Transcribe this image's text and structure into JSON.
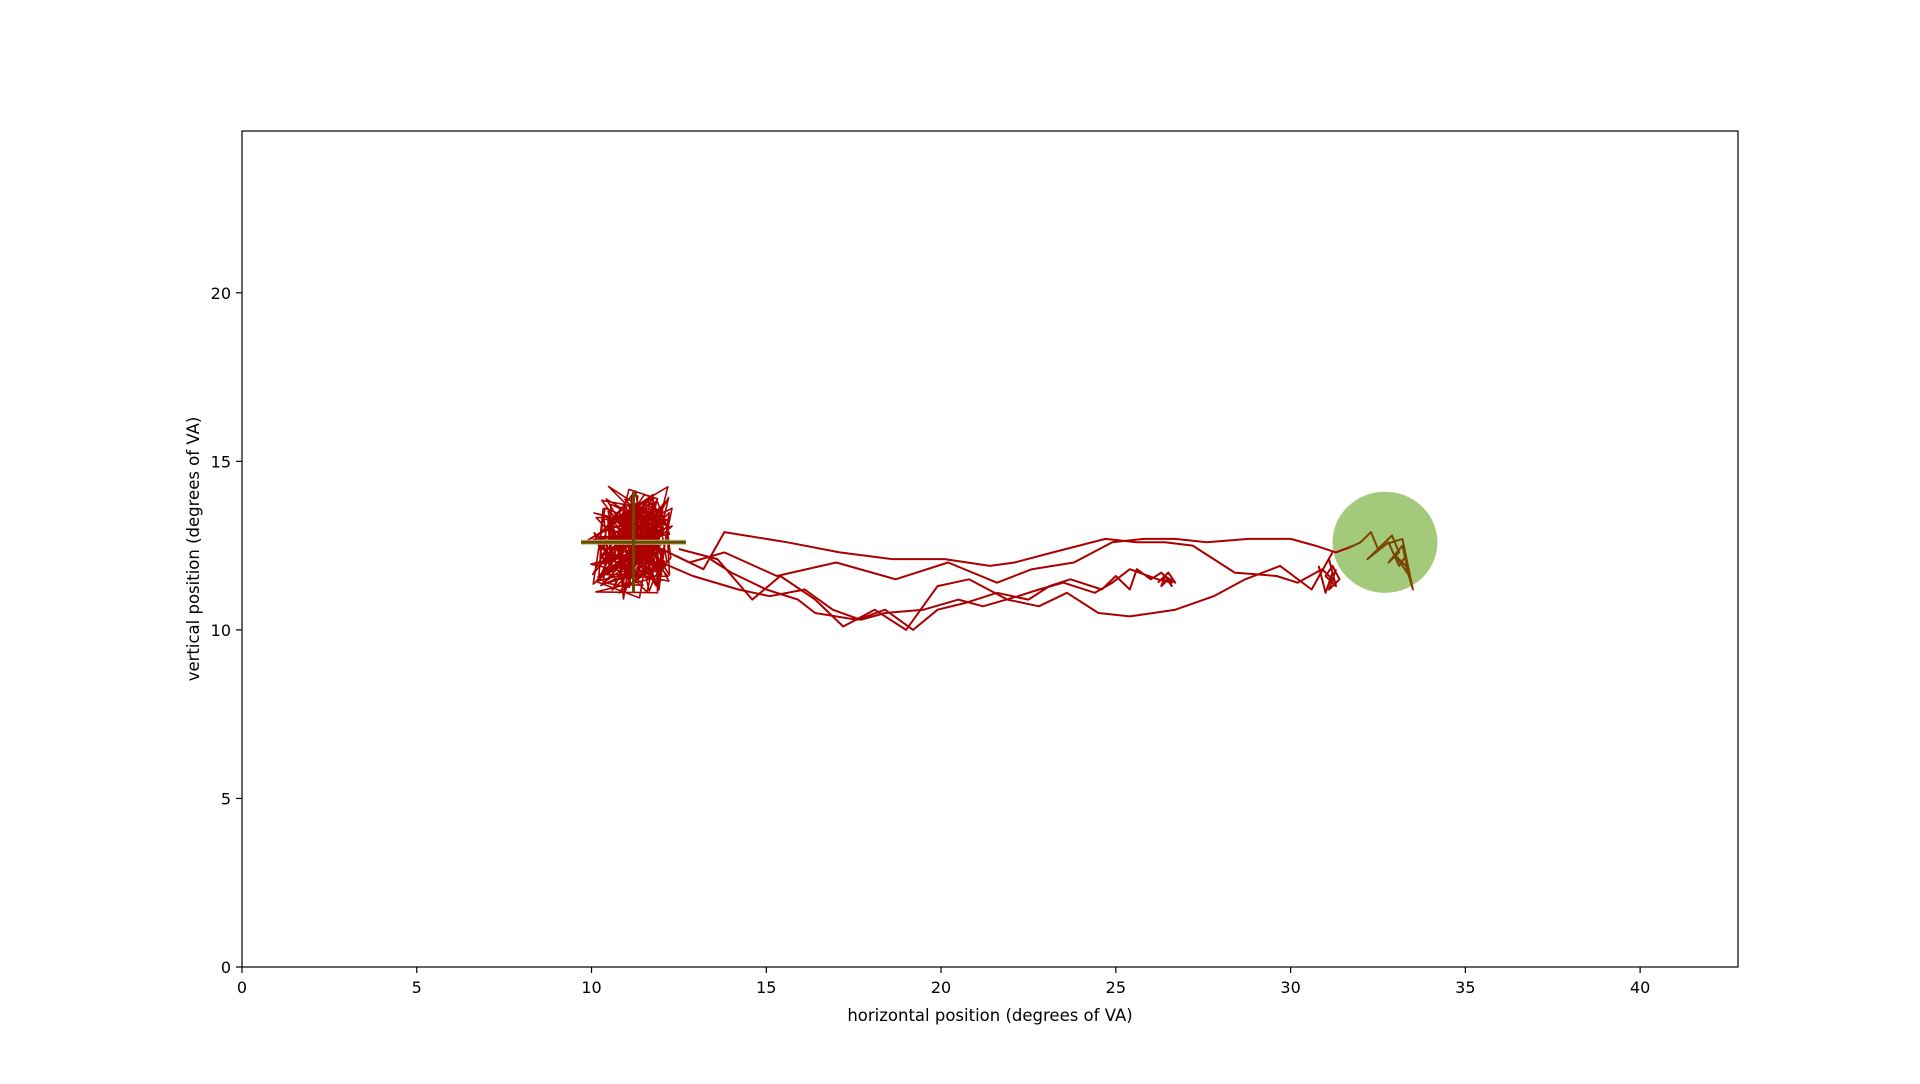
{
  "chart_data": {
    "type": "line",
    "title": "",
    "xlabel": "horizontal position (degrees of VA)",
    "ylabel": "vertical position (degrees of VA)",
    "xlim": [
      0,
      42.8
    ],
    "ylim": [
      0,
      24.8
    ],
    "xticks": [
      0,
      5,
      10,
      15,
      20,
      25,
      30,
      35,
      40
    ],
    "yticks": [
      0,
      5,
      10,
      15,
      20
    ],
    "grid": false,
    "legend": "none",
    "colors": {
      "gaze_trace": "#aa0000",
      "target": "#a3c97a",
      "fixation_cross": "#6b4a00",
      "target_trace": "#7a4600"
    },
    "fixation_cross": {
      "x": 11.2,
      "y": 12.6,
      "half_width": 1.5,
      "half_height": 1.5
    },
    "target": {
      "x": 32.7,
      "y": 12.6,
      "radius": 1.5
    },
    "series": [
      {
        "color": "#aa0000",
        "x": [
          9.8,
          10.6,
          11.4,
          12.2,
          12.8,
          13.8,
          15.3,
          17.0,
          18.7,
          20.2,
          21.6,
          22.6,
          23.8,
          24.9,
          25.8,
          26.7,
          27.6,
          28.8,
          30.0,
          30.7,
          31.3,
          31.8
        ],
        "y": [
          12.6,
          13.1,
          12.7,
          12.3,
          12.0,
          12.3,
          11.6,
          12.0,
          11.5,
          12.0,
          11.4,
          11.8,
          12.0,
          12.6,
          12.7,
          12.7,
          12.6,
          12.7,
          12.7,
          12.5,
          12.3,
          12.5
        ]
      },
      {
        "color": "#aa0000",
        "x": [
          12.4,
          13.2,
          13.8,
          15.6,
          17.1,
          18.6,
          20.1,
          21.4,
          22.1,
          23.2,
          24.7,
          25.6,
          26.4,
          27.2,
          28.4,
          29.6,
          30.2,
          30.9,
          31.3
        ],
        "y": [
          12.2,
          11.8,
          12.9,
          12.6,
          12.3,
          12.1,
          12.1,
          11.9,
          12.0,
          12.3,
          12.7,
          12.6,
          12.6,
          12.5,
          11.7,
          11.6,
          11.4,
          11.8,
          11.4
        ]
      },
      {
        "color": "#aa0000",
        "x": [
          12.0,
          12.9,
          14.2,
          15.1,
          16.1,
          16.9,
          17.7,
          18.4,
          19.5,
          20.5,
          21.2,
          22.2,
          22.8,
          23.5,
          24.4,
          24.9,
          25.4,
          26.2,
          26.6,
          26.3,
          26.0,
          25.6,
          25.4,
          25.0,
          24.6,
          23.7,
          23.1,
          22.5,
          21.6,
          20.7,
          19.9,
          19.2,
          18.4,
          17.6,
          16.4,
          15.9,
          15.0,
          14.0,
          13.4
        ],
        "y": [
          12.0,
          11.6,
          11.2,
          11.0,
          11.2,
          10.6,
          10.3,
          10.5,
          10.6,
          10.9,
          10.7,
          11.0,
          11.2,
          11.4,
          11.1,
          11.4,
          11.8,
          11.5,
          11.4,
          11.7,
          11.5,
          11.8,
          11.2,
          11.6,
          11.2,
          11.5,
          11.3,
          10.9,
          11.1,
          10.8,
          10.6,
          10.0,
          10.6,
          10.3,
          10.5,
          10.9,
          11.2,
          11.7,
          12.1
        ]
      },
      {
        "color": "#aa0000",
        "x": [
          12.5,
          13.6,
          14.6,
          15.4,
          16.4,
          17.2,
          18.1,
          19.0,
          19.9,
          20.8,
          21.9,
          22.8,
          23.6,
          24.5,
          25.4,
          26.7,
          27.8,
          28.7,
          29.7,
          30.6,
          31.2
        ],
        "y": [
          12.4,
          12.1,
          10.9,
          11.6,
          10.9,
          10.1,
          10.6,
          10.0,
          11.3,
          11.5,
          10.9,
          10.7,
          11.1,
          10.5,
          10.4,
          10.6,
          11.0,
          11.5,
          11.9,
          11.2,
          12.3
        ]
      },
      {
        "color": "#aa0000",
        "x": [
          26.2,
          26.4,
          26.3,
          26.5,
          26.6,
          26.4,
          26.7,
          26.5,
          26.3,
          26.6
        ],
        "y": [
          11.4,
          11.6,
          11.3,
          11.5,
          11.3,
          11.6,
          11.4,
          11.7,
          11.5,
          11.4
        ]
      },
      {
        "color": "#aa0000",
        "x": [
          30.8,
          31.0,
          31.2,
          31.1,
          31.3,
          31.0,
          31.2,
          31.4,
          31.1,
          31.3
        ],
        "y": [
          11.9,
          11.1,
          11.7,
          12.1,
          11.3,
          11.6,
          11.9,
          11.5,
          11.2,
          11.8
        ]
      },
      {
        "color": "#7a4600",
        "x": [
          31.6,
          32.0,
          32.3,
          32.5,
          32.9,
          33.1,
          32.8,
          33.2,
          33.4,
          33.0,
          33.3,
          33.5,
          33.2,
          32.6,
          32.2,
          32.8,
          33.1,
          33.3
        ],
        "y": [
          12.4,
          12.6,
          12.9,
          12.4,
          12.8,
          12.3,
          12.0,
          12.5,
          11.6,
          12.2,
          11.9,
          11.2,
          12.7,
          12.5,
          12.1,
          12.6,
          11.9,
          12.2
        ]
      }
    ]
  },
  "icons": [
    "fixation-cross",
    "target-disc"
  ]
}
